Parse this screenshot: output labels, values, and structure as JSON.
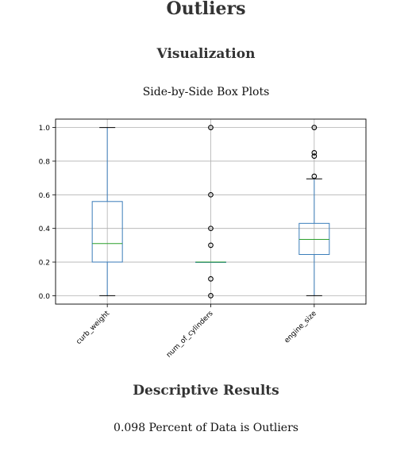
{
  "page": {
    "title": "Outliers",
    "section_visualization": "Visualization",
    "chart_caption": "Side-by-Side Box Plots",
    "section_results": "Descriptive Results",
    "results_text": "0.098 Percent of Data is Outliers"
  },
  "chart_data": {
    "type": "box",
    "title": "",
    "xlabel": "",
    "ylabel": "",
    "ylim": [
      -0.05,
      1.05
    ],
    "yticks": [
      0.0,
      0.2,
      0.4,
      0.6,
      0.8,
      1.0
    ],
    "ytick_labels": [
      "0.0",
      "0.2",
      "0.4",
      "0.6",
      "0.8",
      "1.0"
    ],
    "grid": true,
    "categories": [
      "curb_weight",
      "num_of_cylinders",
      "engine_size"
    ],
    "boxes": [
      {
        "name": "curb_weight",
        "whisker_low": 0.0,
        "q1": 0.2,
        "median": 0.31,
        "q3": 0.56,
        "whisker_high": 1.0,
        "outliers": []
      },
      {
        "name": "num_of_cylinders",
        "whisker_low": 0.2,
        "q1": 0.2,
        "median": 0.2,
        "q3": 0.2,
        "whisker_high": 0.2,
        "outliers": [
          1.0,
          0.6,
          0.4,
          0.3,
          0.1,
          0.0
        ]
      },
      {
        "name": "engine_size",
        "whisker_low": 0.0,
        "q1": 0.245,
        "median": 0.335,
        "q3": 0.43,
        "whisker_high": 0.695,
        "outliers": [
          1.0,
          0.85,
          0.83,
          0.71
        ]
      }
    ],
    "colors": {
      "box": "#3b7dba",
      "median": "#2ca02c",
      "grid": "#b0b0b0",
      "axis": "#000000",
      "outlier": "#000000"
    }
  }
}
